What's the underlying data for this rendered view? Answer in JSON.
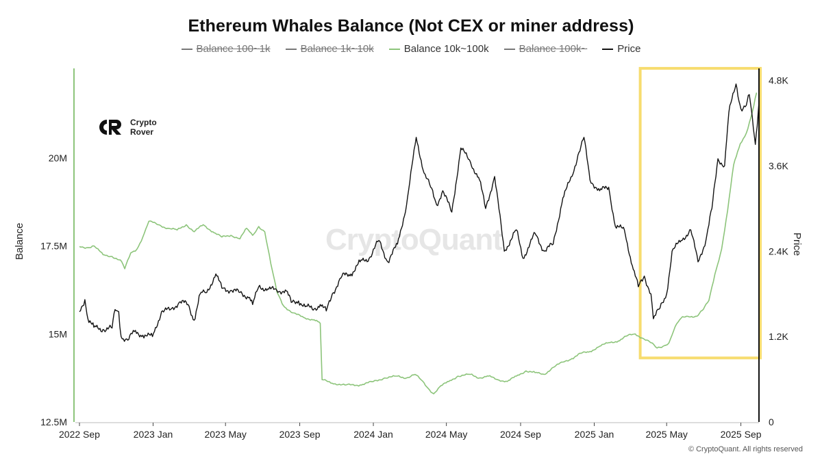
{
  "title": "Ethereum Whales Balance (Not CEX or miner address)",
  "legend": [
    {
      "label": "Balance 100~1k",
      "active": false,
      "color": "#666666"
    },
    {
      "label": "Balance 1k~10k",
      "active": false,
      "color": "#666666"
    },
    {
      "label": "Balance 10k~100k",
      "active": true,
      "color": "#8cc47a"
    },
    {
      "label": "Balance 100k~",
      "active": false,
      "color": "#666666"
    },
    {
      "label": "Price",
      "active": true,
      "color": "#111111"
    }
  ],
  "logo": {
    "line1": "Crypto",
    "line2": "Rover"
  },
  "watermark": "CryptoQuant",
  "footer": "© CryptoQuant. All rights reserved",
  "colors": {
    "balance": "#8cc47a",
    "price": "#111111",
    "highlight": "#f7dc6f",
    "axis_left": "#8cc47a"
  },
  "chart_data": {
    "type": "line",
    "title": "Ethereum Whales Balance (Not CEX or miner address)",
    "ylabel": "Balance",
    "y2label": "Price",
    "ylim": [
      12500000,
      22500000
    ],
    "y2lim": [
      0,
      4950
    ],
    "xlim": [
      "2022-09-01",
      "2025-10-01"
    ],
    "y_ticks": [
      {
        "value": 12500000,
        "label": "12.5M"
      },
      {
        "value": 15000000,
        "label": "15M"
      },
      {
        "value": 17500000,
        "label": "17.5M"
      },
      {
        "value": 20000000,
        "label": "20M"
      }
    ],
    "y2_ticks": [
      {
        "value": 0,
        "label": "0"
      },
      {
        "value": 1200,
        "label": "1.2K"
      },
      {
        "value": 2400,
        "label": "2.4K"
      },
      {
        "value": 3600,
        "label": "3.6K"
      },
      {
        "value": 4800,
        "label": "4.8K"
      }
    ],
    "x_ticks": [
      {
        "date": "2022-09-01",
        "label": "2022 Sep"
      },
      {
        "date": "2023-01-01",
        "label": "2023 Jan"
      },
      {
        "date": "2023-05-01",
        "label": "2023 May"
      },
      {
        "date": "2023-09-01",
        "label": "2023 Sep"
      },
      {
        "date": "2024-01-01",
        "label": "2024 Jan"
      },
      {
        "date": "2024-05-01",
        "label": "2024 May"
      },
      {
        "date": "2024-09-01",
        "label": "2024 Sep"
      },
      {
        "date": "2025-01-01",
        "label": "2025 Jan"
      },
      {
        "date": "2025-05-01",
        "label": "2025 May"
      },
      {
        "date": "2025-09-01",
        "label": "2025 Sep"
      }
    ],
    "highlight": {
      "x_start": "2025-03-25",
      "x_end": "2025-10-01",
      "y2_min": 900,
      "y2_max": 4970
    },
    "series": [
      {
        "name": "Balance 10k~100k",
        "axis": "left",
        "color": "#8cc47a",
        "points": [
          [
            "2022-09-01",
            17480000
          ],
          [
            "2022-09-15",
            17450000
          ],
          [
            "2022-09-25",
            17500000
          ],
          [
            "2022-10-10",
            17250000
          ],
          [
            "2022-10-25",
            17200000
          ],
          [
            "2022-11-10",
            17050000
          ],
          [
            "2022-11-15",
            16850000
          ],
          [
            "2022-11-25",
            17300000
          ],
          [
            "2022-12-05",
            17400000
          ],
          [
            "2022-12-15",
            17750000
          ],
          [
            "2022-12-25",
            18200000
          ],
          [
            "2023-01-10",
            18100000
          ],
          [
            "2023-01-25",
            18000000
          ],
          [
            "2023-02-10",
            17950000
          ],
          [
            "2023-02-25",
            18100000
          ],
          [
            "2023-03-10",
            17900000
          ],
          [
            "2023-03-25",
            18100000
          ],
          [
            "2023-04-10",
            17900000
          ],
          [
            "2023-04-25",
            17750000
          ],
          [
            "2023-05-10",
            17800000
          ],
          [
            "2023-05-25",
            17700000
          ],
          [
            "2023-06-05",
            18000000
          ],
          [
            "2023-06-15",
            17800000
          ],
          [
            "2023-06-25",
            18050000
          ],
          [
            "2023-07-05",
            17900000
          ],
          [
            "2023-07-15",
            17000000
          ],
          [
            "2023-07-25",
            16200000
          ],
          [
            "2023-08-05",
            15800000
          ],
          [
            "2023-08-20",
            15600000
          ],
          [
            "2023-09-10",
            15450000
          ],
          [
            "2023-09-25",
            15400000
          ],
          [
            "2023-10-01",
            15350000
          ],
          [
            "2023-10-05",
            15300000
          ],
          [
            "2023-10-08",
            13700000
          ],
          [
            "2023-10-25",
            13600000
          ],
          [
            "2023-11-15",
            13550000
          ],
          [
            "2023-12-10",
            13550000
          ],
          [
            "2024-01-01",
            13650000
          ],
          [
            "2024-01-20",
            13750000
          ],
          [
            "2024-02-10",
            13800000
          ],
          [
            "2024-02-25",
            13750000
          ],
          [
            "2024-03-10",
            13850000
          ],
          [
            "2024-03-20",
            13700000
          ],
          [
            "2024-04-01",
            13450000
          ],
          [
            "2024-04-10",
            13300000
          ],
          [
            "2024-04-20",
            13500000
          ],
          [
            "2024-05-05",
            13650000
          ],
          [
            "2024-05-20",
            13800000
          ],
          [
            "2024-06-10",
            13850000
          ],
          [
            "2024-06-25",
            13750000
          ],
          [
            "2024-07-10",
            13800000
          ],
          [
            "2024-07-25",
            13700000
          ],
          [
            "2024-08-10",
            13650000
          ],
          [
            "2024-08-25",
            13800000
          ],
          [
            "2024-09-10",
            13950000
          ],
          [
            "2024-09-25",
            13900000
          ],
          [
            "2024-10-10",
            13850000
          ],
          [
            "2024-10-25",
            14050000
          ],
          [
            "2024-11-10",
            14200000
          ],
          [
            "2024-11-25",
            14300000
          ],
          [
            "2024-12-10",
            14450000
          ],
          [
            "2024-12-25",
            14500000
          ],
          [
            "2025-01-10",
            14650000
          ],
          [
            "2025-01-25",
            14750000
          ],
          [
            "2025-02-10",
            14800000
          ],
          [
            "2025-02-25",
            14950000
          ],
          [
            "2025-03-10",
            15000000
          ],
          [
            "2025-03-25",
            14850000
          ],
          [
            "2025-04-05",
            14750000
          ],
          [
            "2025-04-15",
            14600000
          ],
          [
            "2025-04-25",
            14650000
          ],
          [
            "2025-05-05",
            14750000
          ],
          [
            "2025-05-15",
            15200000
          ],
          [
            "2025-05-25",
            15450000
          ],
          [
            "2025-06-05",
            15500000
          ],
          [
            "2025-06-20",
            15500000
          ],
          [
            "2025-07-01",
            15700000
          ],
          [
            "2025-07-10",
            15950000
          ],
          [
            "2025-07-20",
            16700000
          ],
          [
            "2025-07-31",
            17400000
          ],
          [
            "2025-08-10",
            18500000
          ],
          [
            "2025-08-20",
            19800000
          ],
          [
            "2025-08-31",
            20400000
          ],
          [
            "2025-09-10",
            20700000
          ],
          [
            "2025-09-20",
            21300000
          ],
          [
            "2025-09-27",
            21850000
          ]
        ]
      },
      {
        "name": "Price",
        "axis": "right",
        "color": "#111111",
        "points": [
          [
            "2022-09-01",
            1550
          ],
          [
            "2022-09-10",
            1720
          ],
          [
            "2022-09-15",
            1450
          ],
          [
            "2022-09-25",
            1330
          ],
          [
            "2022-10-10",
            1300
          ],
          [
            "2022-10-25",
            1320
          ],
          [
            "2022-10-30",
            1580
          ],
          [
            "2022-11-05",
            1550
          ],
          [
            "2022-11-09",
            1200
          ],
          [
            "2022-11-20",
            1150
          ],
          [
            "2022-12-01",
            1270
          ],
          [
            "2022-12-15",
            1220
          ],
          [
            "2022-12-31",
            1200
          ],
          [
            "2023-01-15",
            1550
          ],
          [
            "2023-01-30",
            1580
          ],
          [
            "2023-02-15",
            1690
          ],
          [
            "2023-02-28",
            1650
          ],
          [
            "2023-03-10",
            1430
          ],
          [
            "2023-03-20",
            1800
          ],
          [
            "2023-03-31",
            1820
          ],
          [
            "2023-04-15",
            2080
          ],
          [
            "2023-04-25",
            1880
          ],
          [
            "2023-05-10",
            1850
          ],
          [
            "2023-05-25",
            1820
          ],
          [
            "2023-06-10",
            1750
          ],
          [
            "2023-06-15",
            1650
          ],
          [
            "2023-06-25",
            1900
          ],
          [
            "2023-07-10",
            1870
          ],
          [
            "2023-07-25",
            1850
          ],
          [
            "2023-08-10",
            1840
          ],
          [
            "2023-08-18",
            1680
          ],
          [
            "2023-08-30",
            1700
          ],
          [
            "2023-09-10",
            1620
          ],
          [
            "2023-09-25",
            1590
          ],
          [
            "2023-10-05",
            1650
          ],
          [
            "2023-10-15",
            1560
          ],
          [
            "2023-10-25",
            1800
          ],
          [
            "2023-11-10",
            2050
          ],
          [
            "2023-11-25",
            2080
          ],
          [
            "2023-12-10",
            2250
          ],
          [
            "2023-12-25",
            2300
          ],
          [
            "2024-01-10",
            2550
          ],
          [
            "2024-01-25",
            2250
          ],
          [
            "2024-02-10",
            2500
          ],
          [
            "2024-02-25",
            3050
          ],
          [
            "2024-03-12",
            4000
          ],
          [
            "2024-03-25",
            3500
          ],
          [
            "2024-04-05",
            3300
          ],
          [
            "2024-04-15",
            3050
          ],
          [
            "2024-04-25",
            3250
          ],
          [
            "2024-05-10",
            2950
          ],
          [
            "2024-05-25",
            3850
          ],
          [
            "2024-06-10",
            3650
          ],
          [
            "2024-06-25",
            3400
          ],
          [
            "2024-07-05",
            3000
          ],
          [
            "2024-07-20",
            3450
          ],
          [
            "2024-08-05",
            2400
          ],
          [
            "2024-08-25",
            2700
          ],
          [
            "2024-09-05",
            2300
          ],
          [
            "2024-09-25",
            2650
          ],
          [
            "2024-10-10",
            2400
          ],
          [
            "2024-10-25",
            2500
          ],
          [
            "2024-11-10",
            3150
          ],
          [
            "2024-11-25",
            3450
          ],
          [
            "2024-12-05",
            3750
          ],
          [
            "2024-12-15",
            4000
          ],
          [
            "2024-12-25",
            3400
          ],
          [
            "2025-01-10",
            3250
          ],
          [
            "2025-01-25",
            3300
          ],
          [
            "2025-02-05",
            2750
          ],
          [
            "2025-02-20",
            2700
          ],
          [
            "2025-03-05",
            2200
          ],
          [
            "2025-03-15",
            1900
          ],
          [
            "2025-03-25",
            2050
          ],
          [
            "2025-04-05",
            1800
          ],
          [
            "2025-04-09",
            1450
          ],
          [
            "2025-04-20",
            1600
          ],
          [
            "2025-05-01",
            1800
          ],
          [
            "2025-05-10",
            2400
          ],
          [
            "2025-05-25",
            2550
          ],
          [
            "2025-06-10",
            2700
          ],
          [
            "2025-06-22",
            2250
          ],
          [
            "2025-07-05",
            2550
          ],
          [
            "2025-07-15",
            3000
          ],
          [
            "2025-07-25",
            3700
          ],
          [
            "2025-08-05",
            3600
          ],
          [
            "2025-08-12",
            4350
          ],
          [
            "2025-08-24",
            4750
          ],
          [
            "2025-09-01",
            4400
          ],
          [
            "2025-09-10",
            4450
          ],
          [
            "2025-09-15",
            4600
          ],
          [
            "2025-09-25",
            3900
          ],
          [
            "2025-10-01",
            4500
          ]
        ]
      }
    ]
  }
}
